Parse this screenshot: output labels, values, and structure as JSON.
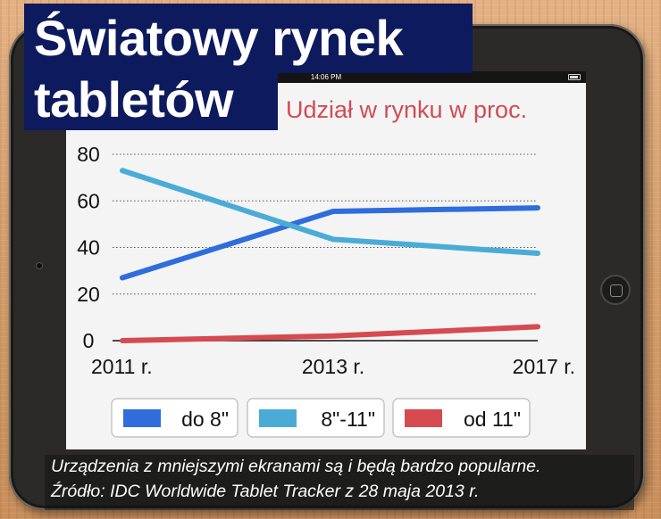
{
  "title_line1": "Światowy rynek",
  "title_line2": "tabletów",
  "subtitle": "Udział w rynku w proc.",
  "status_time": "14:06 PM",
  "footnote_line1": "Urządzenia z mniejszymi ekranami są i będą bardzo popularne.",
  "footnote_line2": "Źródło: IDC Worldwide Tablet Tracker z 28 maja 2013 r.",
  "colors": {
    "title_bg": "#0d1a5e",
    "subtitle": "#d04c52",
    "series": [
      "#2f6ddc",
      "#4aacd6",
      "#d64a50"
    ]
  },
  "chart_data": {
    "type": "line",
    "x": [
      "2011 r.",
      "2013 r.",
      "2017 r."
    ],
    "ylim": [
      0,
      80
    ],
    "yticks": [
      0,
      20,
      40,
      60,
      80
    ],
    "grid": true,
    "legend_position": "bottom",
    "series": [
      {
        "name": "do 8\"",
        "values": [
          27,
          55.5,
          57
        ]
      },
      {
        "name": "8\"-11\"",
        "values": [
          73,
          43.5,
          37.5
        ]
      },
      {
        "name": "od 11\"",
        "values": [
          0,
          2,
          6
        ]
      }
    ]
  }
}
